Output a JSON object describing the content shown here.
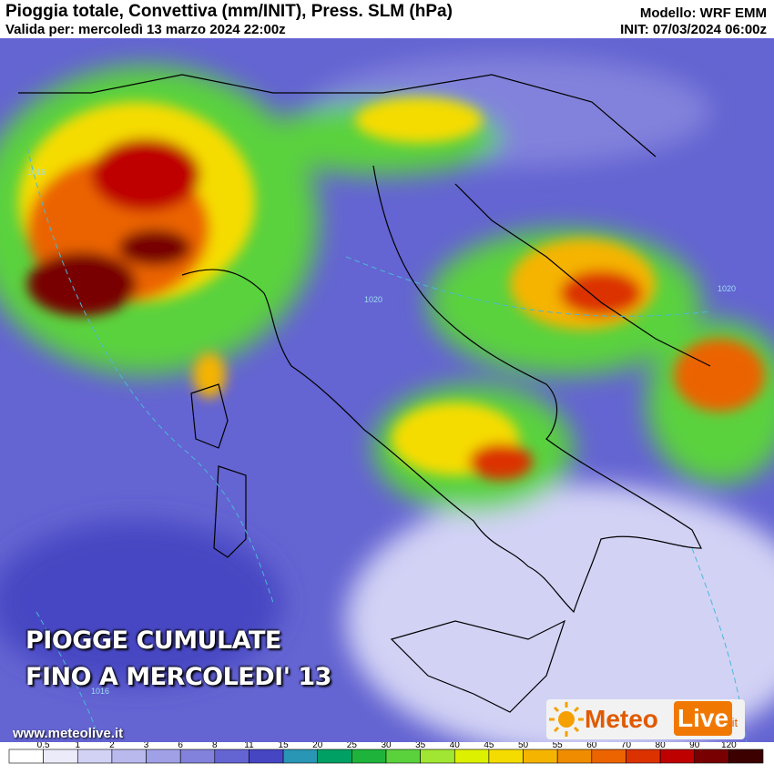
{
  "header": {
    "title": "Pioggia totale, Convettiva (mm/INIT), Press. SLM (hPa)",
    "valid": "Valida per: mercoledì 13 marzo 2024 22:00z",
    "model": "Modello: WRF EMM",
    "init": "INIT: 07/03/2024 06:00z"
  },
  "overlay": {
    "lines": [
      "PIOGGE CUMULATE",
      "FINO A MERCOLEDI' 13"
    ]
  },
  "footer": {
    "url": "www.meteolive.it"
  },
  "logo": {
    "meteo": "Meteo",
    "live": "Live",
    "tld": ".it"
  },
  "isobars": [
    "1020",
    "1020",
    "1016",
    "1016"
  ],
  "legend": {
    "ticks": [
      "0.5",
      "1",
      "2",
      "3",
      "6",
      "8",
      "11",
      "15",
      "20",
      "25",
      "30",
      "35",
      "40",
      "45",
      "50",
      "55",
      "60",
      "70",
      "80",
      "90",
      "120"
    ],
    "colors": [
      "#ffffff",
      "#ebebfa",
      "#d2d2f5",
      "#b9b9ee",
      "#a0a0e6",
      "#8282dc",
      "#6464d2",
      "#4646c3",
      "#2896b4",
      "#00a064",
      "#1eb43c",
      "#5ad23c",
      "#a0e632",
      "#dcf000",
      "#f5dc00",
      "#f5b400",
      "#f08c00",
      "#eb6400",
      "#dc3200",
      "#be0000",
      "#780000",
      "#3c0000"
    ]
  }
}
